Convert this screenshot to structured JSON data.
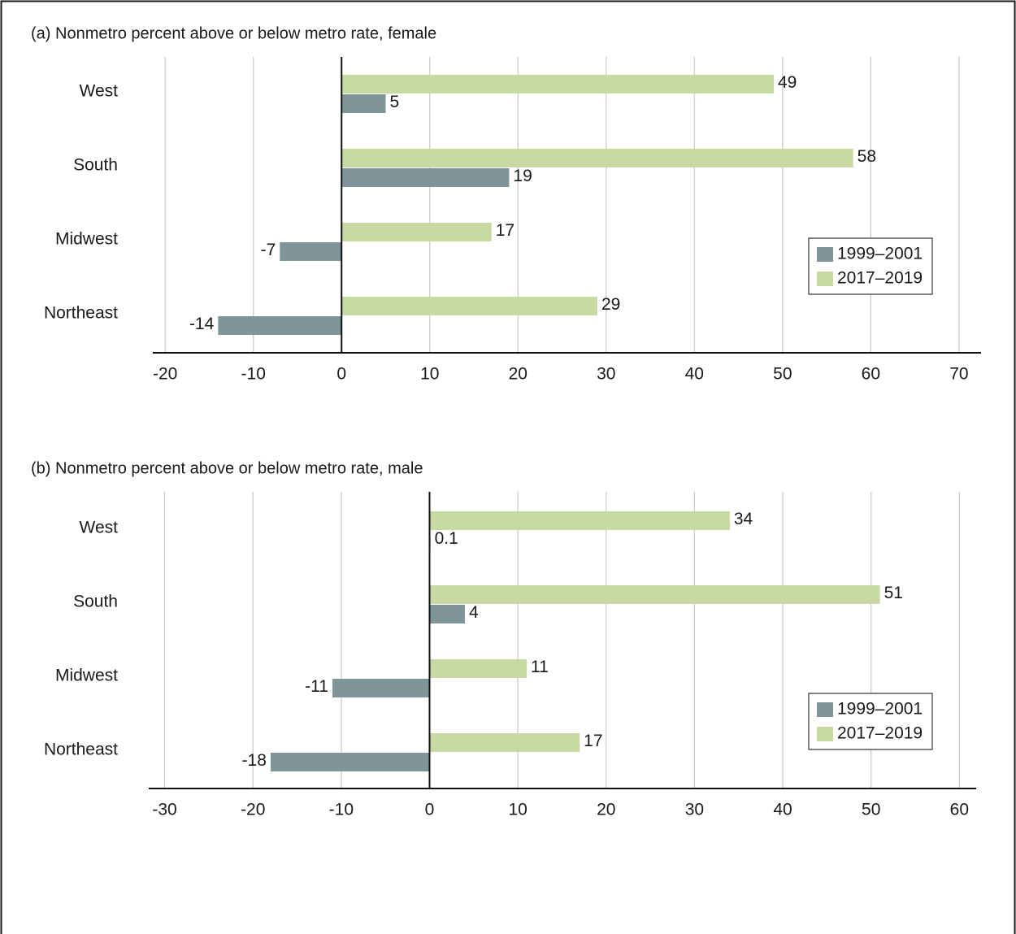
{
  "chart_data": [
    {
      "type": "bar",
      "orientation": "horizontal",
      "title": "(a) Nonmetro percent above or below metro rate, female",
      "categories": [
        "West",
        "South",
        "Midwest",
        "Northeast"
      ],
      "series": [
        {
          "name": "1999–2001",
          "color": "#7f9597",
          "values": [
            5,
            19,
            -7,
            -14
          ]
        },
        {
          "name": "2017–2019",
          "color": "#c8d9a3",
          "values": [
            49,
            58,
            17,
            29
          ]
        }
      ],
      "xlim": [
        -21.4,
        72.5
      ],
      "xticks": [
        -20,
        -10,
        0,
        10,
        20,
        30,
        40,
        50,
        60,
        70
      ],
      "grid": true,
      "legend": "right"
    },
    {
      "type": "bar",
      "orientation": "horizontal",
      "title": "(b) Nonmetro percent above or below metro rate, male",
      "categories": [
        "West",
        "South",
        "Midwest",
        "Northeast"
      ],
      "series": [
        {
          "name": "1999–2001",
          "color": "#7f9597",
          "values": [
            0.1,
            4,
            -11,
            -18
          ]
        },
        {
          "name": "2017–2019",
          "color": "#c8d9a3",
          "values": [
            34,
            51,
            11,
            17
          ]
        }
      ],
      "xlim": [
        -31.8,
        61.9
      ],
      "xticks": [
        -30,
        -20,
        -10,
        0,
        10,
        20,
        30,
        40,
        50,
        60
      ],
      "grid": true,
      "legend": "right"
    }
  ]
}
